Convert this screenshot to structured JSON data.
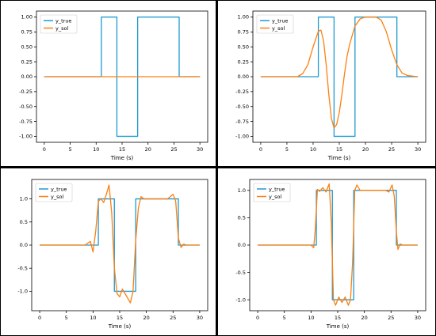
{
  "colors": {
    "y_true": "#1f9bd1",
    "y_sol": "#ff7f0e"
  },
  "chart_data": [
    {
      "type": "line",
      "xlabel": "Time (s)",
      "ylabel": "",
      "xlim": [
        -1.5,
        31.5
      ],
      "ylim": [
        -1.1,
        1.1
      ],
      "xticks": [
        "0",
        "5",
        "10",
        "15",
        "20",
        "25",
        "30"
      ],
      "yticks": [
        "1.00",
        "0.75",
        "0.50",
        "0.25",
        "0.00",
        "-0.25",
        "-0.50",
        "-0.75",
        "-1.00"
      ],
      "legend": [
        "y_true",
        "y_sol"
      ],
      "legend_position": "top-left",
      "series": [
        {
          "name": "y_true",
          "x": [
            0,
            11,
            11,
            14,
            14,
            18,
            18,
            26,
            26,
            30
          ],
          "y": [
            0,
            0,
            1,
            1,
            -1,
            -1,
            1,
            1,
            0,
            0
          ]
        },
        {
          "name": "y_sol",
          "x": [
            0,
            30
          ],
          "y": [
            0,
            0
          ]
        }
      ]
    },
    {
      "type": "line",
      "xlabel": "Time (s)",
      "ylabel": "",
      "xlim": [
        -1.5,
        31.5
      ],
      "ylim": [
        -1.1,
        1.1
      ],
      "xticks": [
        "0",
        "5",
        "10",
        "15",
        "20",
        "25",
        "30"
      ],
      "yticks": [
        "1.00",
        "0.75",
        "0.50",
        "0.25",
        "0.00",
        "-0.25",
        "-0.50",
        "-0.75",
        "-1.00"
      ],
      "legend": [
        "y_true",
        "y_sol"
      ],
      "legend_position": "top-left",
      "series": [
        {
          "name": "y_true",
          "x": [
            0,
            11,
            11,
            14,
            14,
            18,
            18,
            26,
            26,
            30
          ],
          "y": [
            0,
            0,
            1,
            1,
            -1,
            -1,
            1,
            1,
            0,
            0
          ]
        },
        {
          "name": "y_sol",
          "x": [
            0,
            7,
            8,
            9,
            10,
            11,
            11.5,
            12,
            12.5,
            13,
            13.5,
            14,
            14.5,
            15,
            15.5,
            16,
            16.5,
            17,
            18,
            19,
            20,
            21,
            22,
            23,
            24,
            25,
            26,
            27,
            28,
            30
          ],
          "y": [
            0,
            0,
            0.05,
            0.2,
            0.5,
            0.76,
            0.78,
            0.6,
            0.2,
            -0.3,
            -0.7,
            -0.86,
            -0.8,
            -0.6,
            -0.3,
            0.05,
            0.35,
            0.55,
            0.85,
            0.97,
            1.0,
            1.0,
            1.0,
            0.95,
            0.75,
            0.45,
            0.2,
            0.06,
            0.02,
            0
          ]
        }
      ]
    },
    {
      "type": "line",
      "xlabel": "Time (s)",
      "ylabel": "",
      "xlim": [
        -1.5,
        31.5
      ],
      "ylim": [
        -1.42,
        1.42
      ],
      "xticks": [
        "0",
        "5",
        "10",
        "15",
        "20",
        "25",
        "30"
      ],
      "yticks": [
        "1.0",
        "0.5",
        "0.0",
        "-0.5",
        "-1.0"
      ],
      "legend": [
        "y_true",
        "y_sol"
      ],
      "legend_position": "top-left",
      "series": [
        {
          "name": "y_true",
          "x": [
            0,
            11,
            11,
            14,
            14,
            18,
            18,
            26,
            26,
            30
          ],
          "y": [
            0,
            0,
            1,
            1,
            -1,
            -1,
            1,
            1,
            0,
            0
          ]
        },
        {
          "name": "y_sol",
          "x": [
            0,
            8.5,
            9.5,
            10,
            10.5,
            11,
            11.5,
            12,
            12.5,
            13,
            13.5,
            14,
            14.5,
            15,
            15.5,
            16,
            16.5,
            17,
            17.5,
            18,
            18.5,
            19,
            19.5,
            20,
            24,
            25,
            25.5,
            26,
            26.5,
            27,
            27.5,
            30
          ],
          "y": [
            0,
            0,
            0.08,
            -0.15,
            0.3,
            0.95,
            1.0,
            0.92,
            1.1,
            1.3,
            0.7,
            -0.5,
            -1.05,
            -1.12,
            -0.95,
            -1.05,
            -1.15,
            -1.25,
            -1.0,
            0.1,
            0.8,
            1.05,
            1.0,
            1.0,
            1.0,
            1.1,
            0.95,
            0.15,
            -0.05,
            0.02,
            0,
            0
          ]
        }
      ]
    },
    {
      "type": "line",
      "xlabel": "Time (s)",
      "ylabel": "",
      "xlim": [
        -1.5,
        31.5
      ],
      "ylim": [
        -1.2,
        1.2
      ],
      "xticks": [
        "0",
        "5",
        "10",
        "15",
        "20",
        "25",
        "30"
      ],
      "yticks": [
        "1.0",
        "0.5",
        "0.0",
        "-0.5",
        "-1.0"
      ],
      "legend": [
        "y_true",
        "y_sol"
      ],
      "legend_position": "top-left",
      "series": [
        {
          "name": "y_true",
          "x": [
            0,
            11,
            11,
            14,
            14,
            18,
            18,
            26,
            26,
            30
          ],
          "y": [
            0,
            0,
            1,
            1,
            -1,
            -1,
            1,
            1,
            0,
            0
          ]
        },
        {
          "name": "y_sol",
          "x": [
            0,
            10,
            10.5,
            10.8,
            11.2,
            11.6,
            12.2,
            12.8,
            13.4,
            13.8,
            14.2,
            14.6,
            15.2,
            15.8,
            16.4,
            17,
            17.4,
            17.8,
            18.2,
            18.6,
            19.2,
            20,
            24,
            24.6,
            25.2,
            25.6,
            26,
            26.3,
            26.7,
            27.2,
            30
          ],
          "y": [
            0,
            0,
            -0.05,
            0.3,
            1.02,
            0.98,
            1.05,
            0.97,
            1.12,
            0.4,
            -1.0,
            -1.1,
            -0.95,
            -1.05,
            -0.95,
            -1.1,
            -1.0,
            -0.3,
            1.0,
            1.1,
            1.0,
            1.0,
            1.0,
            0.97,
            1.1,
            0.9,
            0.25,
            -0.08,
            0.02,
            0,
            0
          ]
        }
      ]
    }
  ]
}
